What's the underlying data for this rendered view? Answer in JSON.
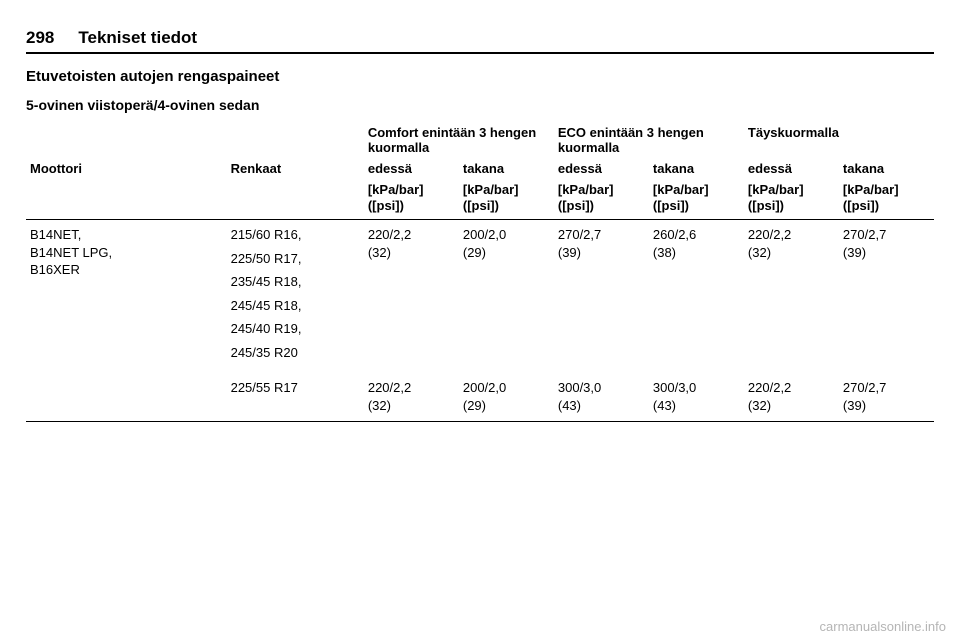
{
  "header": {
    "page_number": "298",
    "chapter": "Tekniset tiedot"
  },
  "section_title": "Etuvetoisten autojen rengaspaineet",
  "subsection_title": "5-ovinen viistoperä/4-ovinen sedan",
  "columns": {
    "engine": "Moottori",
    "tyres": "Renkaat",
    "comfort_group": "Comfort enintään 3 hengen kuormalla",
    "eco_group": "ECO enintään 3 hengen kuormalla",
    "full_group": "Täyskuormalla",
    "front": "edessä",
    "rear": "takana",
    "unit1": "[kPa/bar]",
    "unit2": "([psi])"
  },
  "rows": [
    {
      "engines": [
        "B14NET,",
        "B14NET LPG,",
        "B16XER"
      ],
      "tyres": [
        "215/60 R16,",
        "225/50 R17,",
        "235/45 R18,",
        "245/45 R18,",
        "245/40 R19,",
        "245/35 R20"
      ],
      "comfort_front": "220/2,2 (32)",
      "comfort_rear": "200/2,0 (29)",
      "eco_front": "270/2,7 (39)",
      "eco_rear": "260/2,6 (38)",
      "full_front": "220/2,2 (32)",
      "full_rear": "270/2,7 (39)",
      "border": false
    },
    {
      "engines": [],
      "tyres": [
        "225/55 R17"
      ],
      "comfort_front": "220/2,2 (32)",
      "comfort_rear": "200/2,0 (29)",
      "eco_front": "300/3,0 (43)",
      "eco_rear": "300/3,0 (43)",
      "full_front": "220/2,2 (32)",
      "full_rear": "270/2,7 (39)",
      "border": true
    }
  ],
  "watermark": "carmanualsonline.info"
}
